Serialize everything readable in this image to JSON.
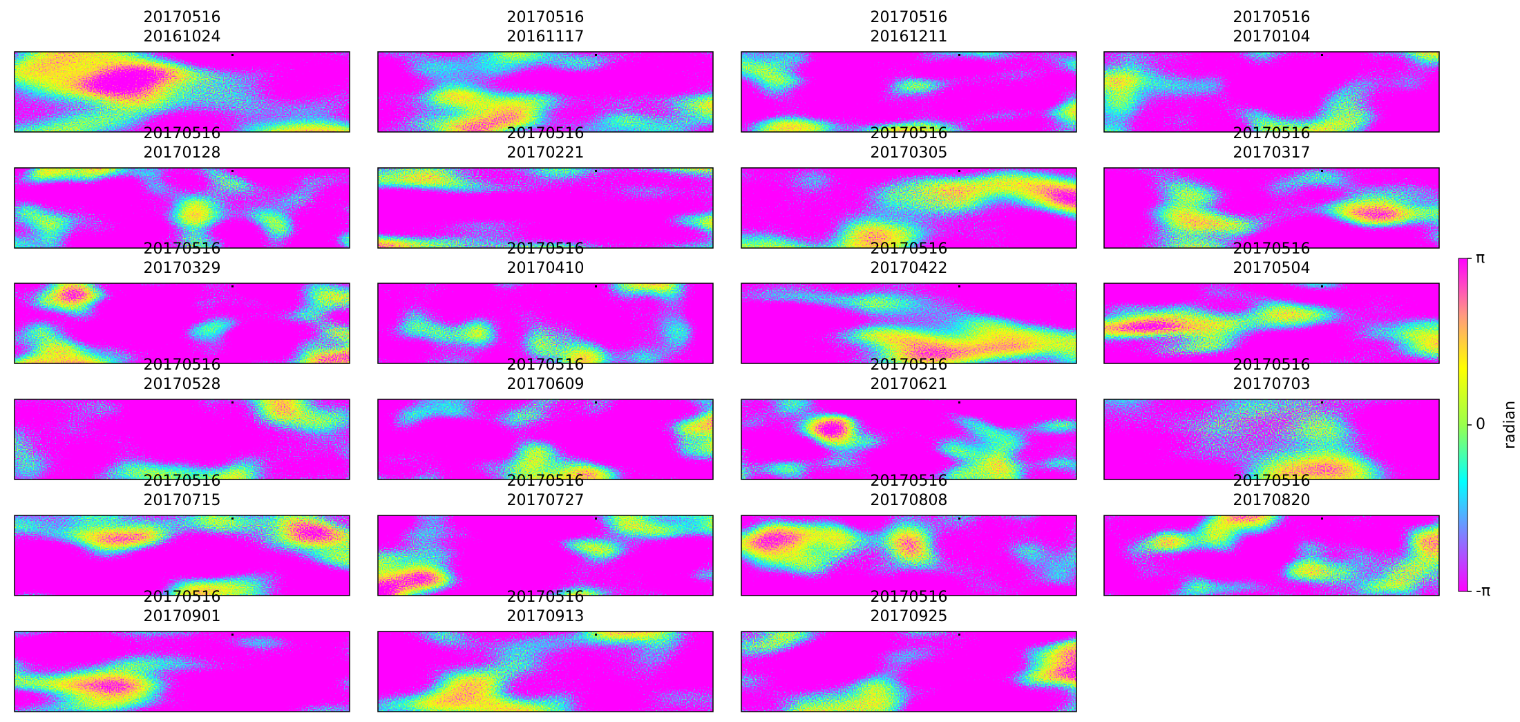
{
  "panels": [
    {
      "title": [
        "20170516",
        "20161024"
      ]
    },
    {
      "title": [
        "20170516",
        "20161117"
      ]
    },
    {
      "title": [
        "20170516",
        "20161211"
      ]
    },
    {
      "title": [
        "20170516",
        "20170104"
      ]
    },
    {
      "title": [
        "20170516",
        "20170128"
      ]
    },
    {
      "title": [
        "20170516",
        "20170221"
      ]
    },
    {
      "title": [
        "20170516",
        "20170305"
      ]
    },
    {
      "title": [
        "20170516",
        "20170317"
      ]
    },
    {
      "title": [
        "20170516",
        "20170329"
      ]
    },
    {
      "title": [
        "20170516",
        "20170410"
      ]
    },
    {
      "title": [
        "20170516",
        "20170422"
      ]
    },
    {
      "title": [
        "20170516",
        "20170504"
      ]
    },
    {
      "title": [
        "20170516",
        "20170528"
      ]
    },
    {
      "title": [
        "20170516",
        "20170609"
      ]
    },
    {
      "title": [
        "20170516",
        "20170621"
      ]
    },
    {
      "title": [
        "20170516",
        "20170703"
      ]
    },
    {
      "title": [
        "20170516",
        "20170715"
      ]
    },
    {
      "title": [
        "20170516",
        "20170727"
      ]
    },
    {
      "title": [
        "20170516",
        "20170808"
      ]
    },
    {
      "title": [
        "20170516",
        "20170820"
      ]
    },
    {
      "title": [
        "20170516",
        "20170901"
      ]
    },
    {
      "title": [
        "20170516",
        "20170913"
      ]
    },
    {
      "title": [
        "20170516",
        "20170925"
      ]
    }
  ],
  "colorbar": {
    "label": "radian",
    "lim": [
      -3.141592653589793,
      3.141592653589793
    ],
    "ticks": [
      {
        "value": -3.141592653589793,
        "label": "-π"
      },
      0,
      {
        "value": 3.141592653589793,
        "label": "π"
      }
    ]
  }
}
